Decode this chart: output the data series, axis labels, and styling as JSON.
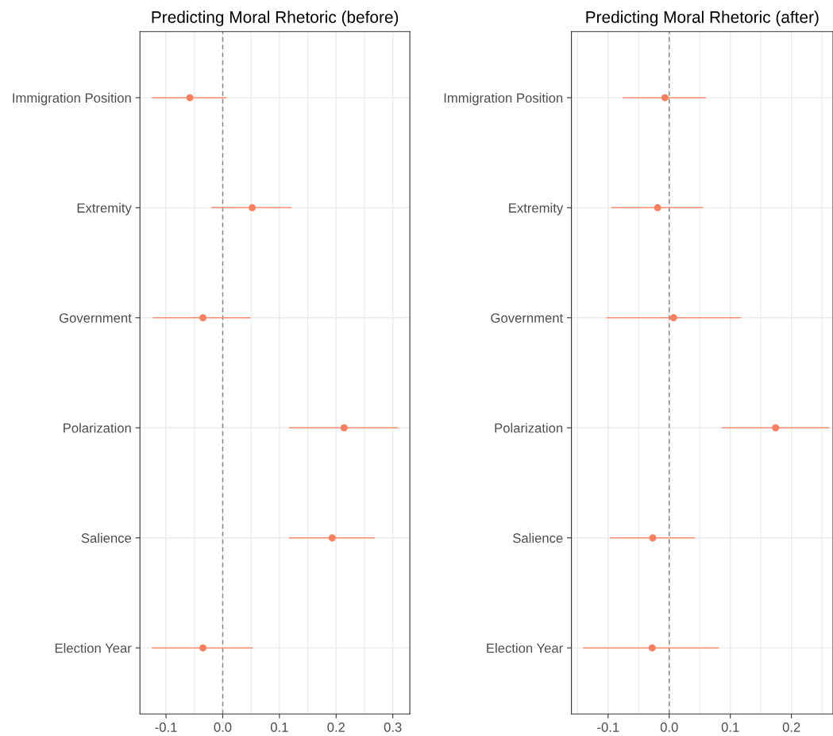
{
  "chart_data": [
    {
      "type": "scatter",
      "orientation": "horizontal",
      "title": "Predicting Moral Rhetoric (before)",
      "categories": [
        "Immigration Position",
        "Extremity",
        "Government",
        "Polarization",
        "Salience",
        "Election Year"
      ],
      "series": [
        {
          "color": "#fa7f5e",
          "values": [
            -0.058,
            0.052,
            -0.035,
            0.214,
            0.193,
            -0.035
          ],
          "errors": [
            [
              -0.125,
              0.007
            ],
            [
              -0.02,
              0.121
            ],
            [
              -0.123,
              0.049
            ],
            [
              0.117,
              0.309
            ],
            [
              0.117,
              0.268
            ],
            [
              -0.125,
              0.053
            ]
          ]
        }
      ],
      "xlim": [
        -0.146,
        0.33
      ],
      "xticks": [
        -0.1,
        {
          "value": 0,
          "label": "0.0"
        },
        0.1,
        0.2,
        0.3
      ],
      "ref_lines": [
        {
          "axis": "x",
          "value": 0,
          "color": "#808080",
          "line_style": "dashed"
        }
      ],
      "grid": true,
      "marker": "circle"
    },
    {
      "type": "scatter",
      "orientation": "horizontal",
      "title": "Predicting Moral Rhetoric (after)",
      "categories": [
        "Immigration Position",
        "Extremity",
        "Government",
        "Polarization",
        "Salience",
        "Election Year"
      ],
      "series": [
        {
          "color": "#fa7f5e",
          "values": [
            -0.007,
            -0.019,
            0.007,
            0.174,
            -0.027,
            -0.028
          ],
          "errors": [
            [
              -0.076,
              0.06
            ],
            [
              -0.095,
              0.055
            ],
            [
              -0.103,
              0.117
            ],
            [
              0.086,
              0.262
            ],
            [
              -0.097,
              0.042
            ],
            [
              -0.141,
              0.081
            ]
          ]
        }
      ],
      "xlim": [
        -0.16,
        0.268
      ],
      "xticks": [
        -0.1,
        {
          "value": 0,
          "label": "0.0"
        },
        0.1,
        0.2
      ],
      "ref_lines": [
        {
          "axis": "x",
          "value": 0,
          "color": "#808080",
          "line_style": "dashed"
        }
      ],
      "grid": true,
      "marker": "circle"
    }
  ]
}
